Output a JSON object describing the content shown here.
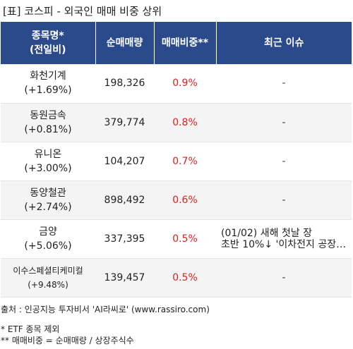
{
  "title": "[표] 코스피 - 외국인 매매 비중 상위",
  "header": {
    "name_line1": "종목명*",
    "name_line2": "(전일비)",
    "volume": "순매매량",
    "ratio": "매매비중**",
    "issue": "최근 이슈"
  },
  "rows": [
    {
      "name": "화천기계",
      "change": "(+1.69%)",
      "volume": "198,326",
      "ratio": "0.9%",
      "issue_line1": "-",
      "issue_line2": ""
    },
    {
      "name": "동원금속",
      "change": "(+0.81%)",
      "volume": "379,774",
      "ratio": "0.8%",
      "issue_line1": "-",
      "issue_line2": ""
    },
    {
      "name": "유니온",
      "change": "(+3.00%)",
      "volume": "104,207",
      "ratio": "0.7%",
      "issue_line1": "-",
      "issue_line2": ""
    },
    {
      "name": "동양철관",
      "change": "(+2.74%)",
      "volume": "898,492",
      "ratio": "0.6%",
      "issue_line1": "-",
      "issue_line2": ""
    },
    {
      "name": "금양",
      "change": "(+5.06%)",
      "volume": "337,395",
      "ratio": "0.5%",
      "issue_line1": "(01/02) 새해 첫날 장",
      "issue_line2": "초반 10%↓ '이차전지 공장…"
    },
    {
      "name": "이수스페셜티케미컬",
      "change": "(+9.48%)",
      "volume": "139,457",
      "ratio": "0.5%",
      "issue_line1": "-",
      "issue_line2": ""
    }
  ],
  "source": "출처 : 인공지능 투자비서 'AI라씨로' (www.rassiro.com)",
  "note1": "* ETF 종목 제외",
  "note2": "** 매매비중 = 순매매량 / 상장주식수"
}
